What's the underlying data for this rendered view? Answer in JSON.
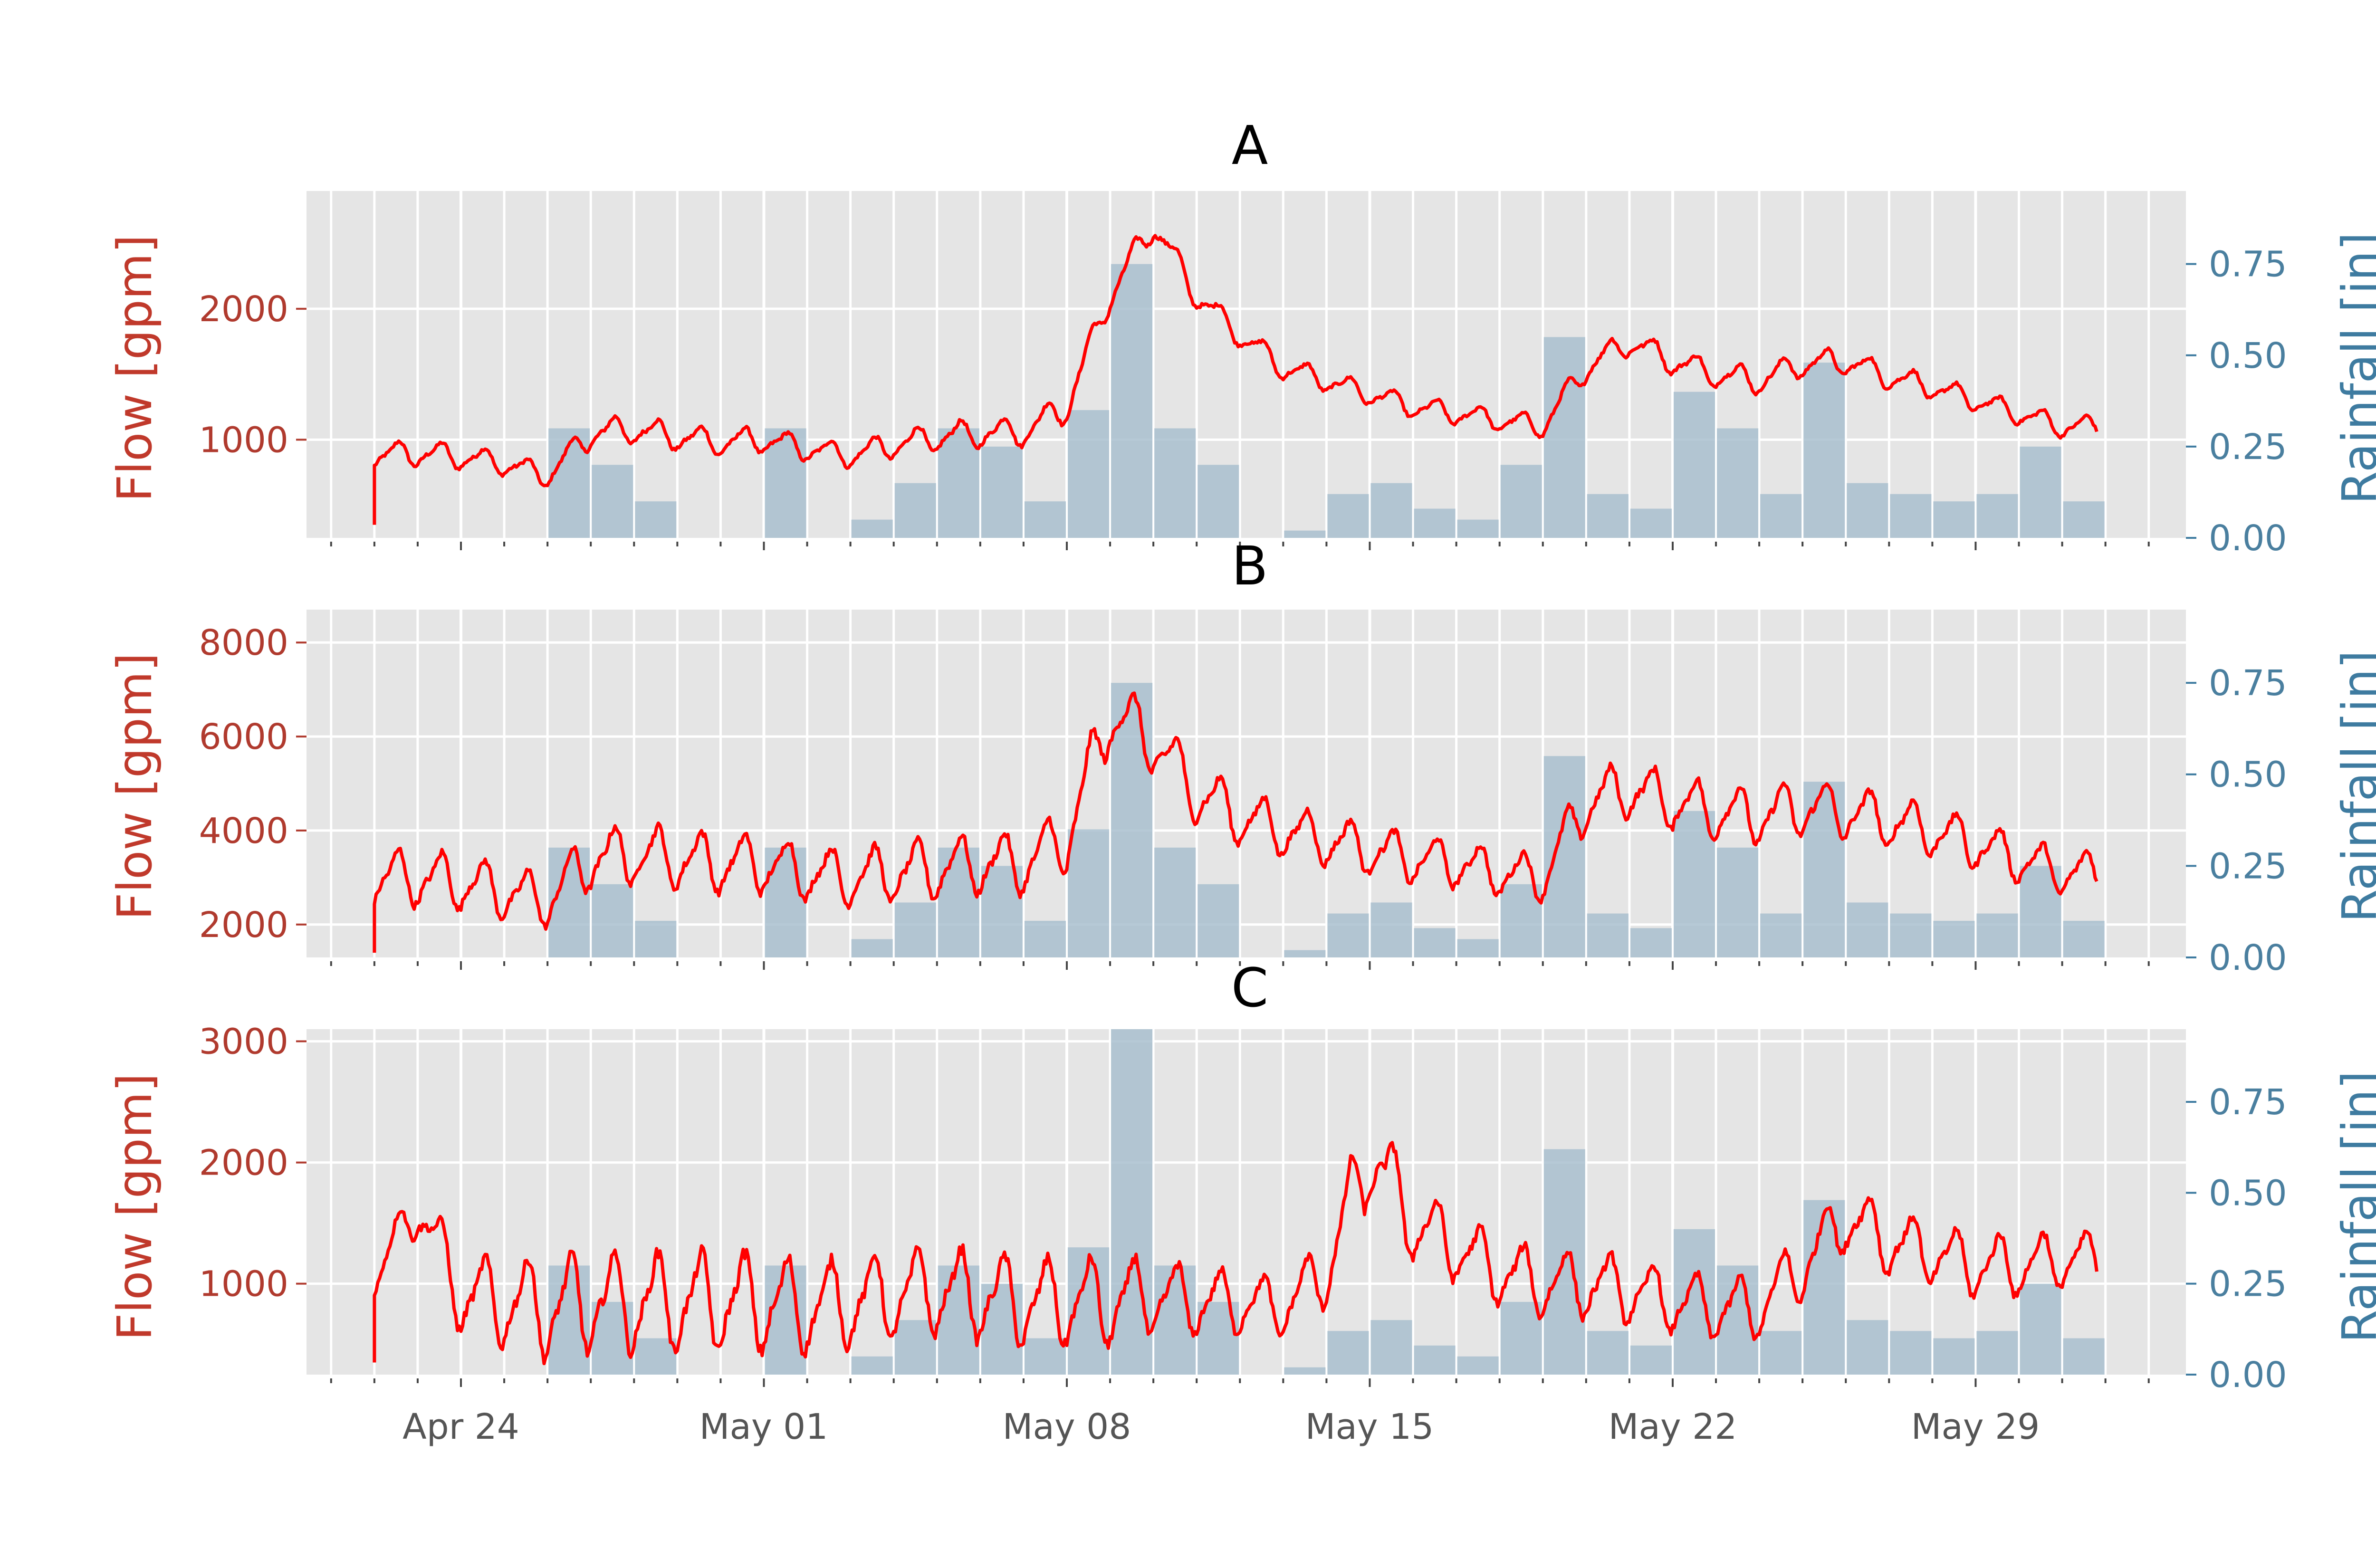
{
  "figure": {
    "colors": {
      "background": "#ffffff",
      "axes_face": "#e5e5e5",
      "grid": "#ffffff",
      "flow_line": "#ff0000",
      "rain_bar": "#a9bfcf",
      "left_axis_text": "#b03a2e",
      "right_axis_text": "#3e7ba0",
      "x_tick_text": "#555555"
    },
    "x_tick_labels": [
      "Apr 24",
      "May 01",
      "May 08",
      "May 15",
      "May 22",
      "May 29"
    ]
  },
  "chart_data": [
    {
      "type": "line",
      "title": "A",
      "ylabel": "Flow [gpm]",
      "y2label": "Rainfall [in]",
      "x_range": [
        "Apr 21",
        "Jun 02"
      ],
      "ylim": [
        250,
        2900
      ],
      "y2lim": [
        0.0,
        0.95
      ],
      "yticks": [
        "1000",
        "2000"
      ],
      "y2ticks": [
        "0.00",
        "0.25",
        "0.50",
        "0.75"
      ],
      "grid": true,
      "series": [
        {
          "kind": "flow",
          "x": [
            "Apr 22",
            "Apr 23",
            "Apr 24",
            "Apr 25",
            "Apr 26",
            "Apr 27",
            "Apr 28",
            "Apr 29",
            "Apr 30",
            "May 01",
            "May 02",
            "May 03",
            "May 04",
            "May 05",
            "May 06",
            "May 07",
            "May 08",
            "May 09",
            "May 10",
            "May 11",
            "May 12",
            "May 13",
            "May 14",
            "May 15",
            "May 16",
            "May 17",
            "May 18",
            "May 19",
            "May 20",
            "May 21",
            "May 22",
            "May 23",
            "May 24",
            "May 25",
            "May 26",
            "May 27",
            "May 28",
            "May 29",
            "May 30",
            "May 31"
          ],
          "mean": [
            880,
            900,
            870,
            820,
            720,
            1050,
            1080,
            1020,
            980,
            1000,
            930,
            880,
            960,
            1020,
            1050,
            1060,
            1250,
            2100,
            2650,
            2100,
            1800,
            1550,
            1450,
            1350,
            1250,
            1200,
            1150,
            1100,
            1550,
            1750,
            1600,
            1500,
            1450,
            1580,
            1600,
            1480,
            1400,
            1300,
            1200,
            1100
          ],
          "amplitude": [
            100,
            110,
            100,
            100,
            90,
            120,
            120,
            110,
            110,
            110,
            100,
            100,
            110,
            120,
            120,
            120,
            130,
            120,
            120,
            110,
            100,
            100,
            90,
            90,
            90,
            90,
            90,
            90,
            110,
            110,
            110,
            110,
            110,
            110,
            110,
            100,
            100,
            90,
            90,
            90
          ]
        },
        {
          "kind": "rainfall",
          "x": [
            "Apr 25",
            "Apr 26",
            "Apr 27",
            "Apr 28",
            "Apr 29",
            "Apr 30",
            "May 01",
            "May 02",
            "May 03",
            "May 04",
            "May 05",
            "May 06",
            "May 07",
            "May 08",
            "May 09",
            "May 10",
            "May 11",
            "May 12",
            "May 13",
            "May 14",
            "May 15",
            "May 16",
            "May 17",
            "May 18",
            "May 19",
            "May 20",
            "May 21",
            "May 22",
            "May 23",
            "May 24",
            "May 25",
            "May 26",
            "May 27",
            "May 28",
            "May 29",
            "May 30",
            "May 31"
          ],
          "values": [
            0.0,
            0.3,
            0.2,
            0.1,
            0.0,
            0.0,
            0.3,
            0.0,
            0.05,
            0.15,
            0.3,
            0.25,
            0.1,
            0.35,
            0.75,
            0.3,
            0.2,
            0.0,
            0.02,
            0.12,
            0.15,
            0.08,
            0.05,
            0.2,
            0.55,
            0.12,
            0.08,
            0.4,
            0.3,
            0.12,
            0.48,
            0.15,
            0.12,
            0.1,
            0.12,
            0.25,
            0.1
          ]
        }
      ]
    },
    {
      "type": "line",
      "title": "B",
      "ylabel": "Flow [gpm]",
      "y2label": "Rainfall [in]",
      "x_range": [
        "Apr 21",
        "Jun 02"
      ],
      "ylim": [
        1300,
        8700
      ],
      "y2lim": [
        0.0,
        0.95
      ],
      "yticks": [
        "2000",
        "4000",
        "6000",
        "8000"
      ],
      "y2ticks": [
        "0.00",
        "0.25",
        "0.50",
        "0.75"
      ],
      "grid": true,
      "series": [
        {
          "kind": "flow",
          "x": [
            "Apr 22",
            "Apr 23",
            "Apr 24",
            "Apr 25",
            "Apr 26",
            "Apr 27",
            "Apr 28",
            "Apr 29",
            "Apr 30",
            "May 01",
            "May 02",
            "May 03",
            "May 04",
            "May 05",
            "May 06",
            "May 07",
            "May 08",
            "May 09",
            "May 10",
            "May 11",
            "May 12",
            "May 13",
            "May 14",
            "May 15",
            "May 16",
            "May 17",
            "May 18",
            "May 19",
            "May 20",
            "May 21",
            "May 22",
            "May 23",
            "May 24",
            "May 25",
            "May 26",
            "May 27",
            "May 28",
            "May 29",
            "May 30",
            "May 31"
          ],
          "mean": [
            3000,
            3000,
            2900,
            2700,
            2500,
            3400,
            3500,
            3400,
            3300,
            3300,
            3100,
            3000,
            3100,
            3200,
            3300,
            3300,
            3800,
            6500,
            5900,
            4800,
            4300,
            4000,
            3800,
            3600,
            3400,
            3300,
            3100,
            3000,
            4600,
            4900,
            4600,
            4400,
            4300,
            4500,
            4400,
            4200,
            4000,
            3700,
            3400,
            3100
          ],
          "amplitude": [
            650,
            650,
            650,
            620,
            600,
            700,
            700,
            700,
            680,
            680,
            650,
            650,
            680,
            700,
            700,
            700,
            750,
            800,
            750,
            700,
            650,
            600,
            600,
            580,
            560,
            550,
            540,
            540,
            650,
            650,
            650,
            650,
            650,
            650,
            640,
            620,
            600,
            560,
            540,
            500
          ]
        },
        {
          "kind": "rainfall",
          "x": [
            "Apr 25",
            "Apr 26",
            "Apr 27",
            "Apr 28",
            "Apr 29",
            "Apr 30",
            "May 01",
            "May 02",
            "May 03",
            "May 04",
            "May 05",
            "May 06",
            "May 07",
            "May 08",
            "May 09",
            "May 10",
            "May 11",
            "May 12",
            "May 13",
            "May 14",
            "May 15",
            "May 16",
            "May 17",
            "May 18",
            "May 19",
            "May 20",
            "May 21",
            "May 22",
            "May 23",
            "May 24",
            "May 25",
            "May 26",
            "May 27",
            "May 28",
            "May 29",
            "May 30",
            "May 31"
          ],
          "values": [
            0.0,
            0.3,
            0.2,
            0.1,
            0.0,
            0.0,
            0.3,
            0.0,
            0.05,
            0.15,
            0.3,
            0.25,
            0.1,
            0.35,
            0.75,
            0.3,
            0.2,
            0.0,
            0.02,
            0.12,
            0.15,
            0.08,
            0.05,
            0.2,
            0.55,
            0.12,
            0.08,
            0.4,
            0.3,
            0.12,
            0.48,
            0.15,
            0.12,
            0.1,
            0.12,
            0.25,
            0.1
          ]
        }
      ]
    },
    {
      "type": "line",
      "title": "C",
      "ylabel": "Flow [gpm]",
      "y2label": "Rainfall [in]",
      "x_range": [
        "Apr 21",
        "Jun 02"
      ],
      "ylim": [
        250,
        3100
      ],
      "y2lim": [
        0.0,
        0.95
      ],
      "yticks": [
        "1000",
        "2000",
        "3000"
      ],
      "y2ticks": [
        "0.00",
        "0.25",
        "0.50",
        "0.75"
      ],
      "grid": true,
      "series": [
        {
          "kind": "flow",
          "x": [
            "Apr 22",
            "Apr 23",
            "Apr 24",
            "Apr 25",
            "Apr 26",
            "Apr 27",
            "Apr 28",
            "Apr 29",
            "Apr 30",
            "May 01",
            "May 02",
            "May 03",
            "May 04",
            "May 05",
            "May 06",
            "May 07",
            "May 08",
            "May 09",
            "May 10",
            "May 11",
            "May 12",
            "May 13",
            "May 14",
            "May 15",
            "May 16",
            "May 17",
            "May 18",
            "May 19",
            "May 20",
            "May 21",
            "May 22",
            "May 23",
            "May 24",
            "May 25",
            "May 26",
            "May 27",
            "May 28",
            "May 29",
            "May 30",
            "May 31"
          ],
          "mean": [
            1050,
            1650,
            900,
            850,
            800,
            850,
            850,
            850,
            850,
            850,
            800,
            850,
            900,
            950,
            900,
            850,
            850,
            850,
            900,
            850,
            850,
            800,
            1100,
            2100,
            1500,
            1300,
            1100,
            1000,
            1000,
            950,
            850,
            800,
            800,
            1150,
            1550,
            1350,
            1250,
            1150,
            1150,
            1200
          ],
          "amplitude": [
            200,
            250,
            350,
            400,
            450,
            450,
            450,
            450,
            450,
            450,
            400,
            400,
            400,
            400,
            400,
            400,
            400,
            400,
            350,
            300,
            280,
            250,
            300,
            450,
            350,
            300,
            300,
            300,
            300,
            300,
            280,
            280,
            280,
            300,
            300,
            300,
            280,
            280,
            280,
            250
          ]
        },
        {
          "kind": "rainfall",
          "x": [
            "Apr 25",
            "Apr 26",
            "Apr 27",
            "Apr 28",
            "Apr 29",
            "Apr 30",
            "May 01",
            "May 02",
            "May 03",
            "May 04",
            "May 05",
            "May 06",
            "May 07",
            "May 08",
            "May 09",
            "May 10",
            "May 11",
            "May 12",
            "May 13",
            "May 14",
            "May 15",
            "May 16",
            "May 17",
            "May 18",
            "May 19",
            "May 20",
            "May 21",
            "May 22",
            "May 23",
            "May 24",
            "May 25",
            "May 26",
            "May 27",
            "May 28",
            "May 29",
            "May 30",
            "May 31"
          ],
          "values": [
            0.0,
            0.3,
            0.2,
            0.1,
            0.0,
            0.0,
            0.3,
            0.0,
            0.05,
            0.15,
            0.3,
            0.25,
            0.1,
            0.35,
            0.95,
            0.3,
            0.2,
            0.0,
            0.02,
            0.12,
            0.15,
            0.08,
            0.05,
            0.2,
            0.62,
            0.12,
            0.08,
            0.4,
            0.3,
            0.12,
            0.48,
            0.15,
            0.12,
            0.1,
            0.12,
            0.25,
            0.1
          ]
        }
      ]
    }
  ]
}
